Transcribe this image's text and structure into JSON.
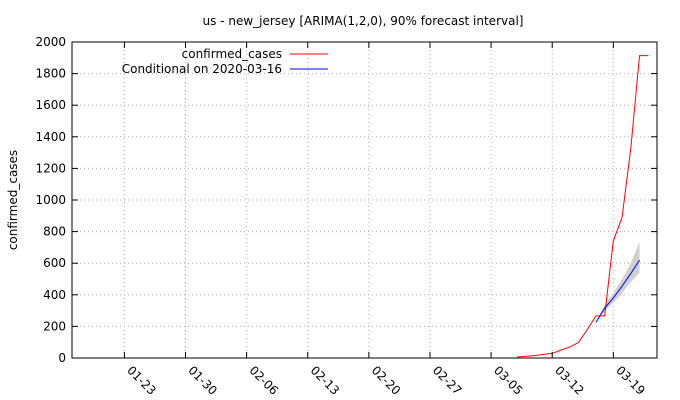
{
  "chart_data": {
    "type": "line",
    "title": "us - new_jersey [ARIMA(1,2,0), 90% forecast interval]",
    "xlabel": "",
    "ylabel": "confirmed_cases",
    "xlim": [
      "2020-01-17",
      "2020-03-24"
    ],
    "ylim": [
      0,
      2000
    ],
    "yticks": [
      0,
      200,
      400,
      600,
      800,
      1000,
      1200,
      1400,
      1600,
      1800,
      2000
    ],
    "xticks": [
      "01-23",
      "01-30",
      "02-06",
      "02-13",
      "02-20",
      "02-27",
      "03-05",
      "03-12",
      "03-19"
    ],
    "xtick_dates": [
      "2020-01-23",
      "2020-01-30",
      "2020-02-06",
      "2020-02-13",
      "2020-02-20",
      "2020-02-27",
      "2020-03-05",
      "2020-03-12",
      "2020-03-19"
    ],
    "grid": true,
    "grid_style": "dotted",
    "legend_position": "top-left",
    "series": [
      {
        "name": "confirmed_cases",
        "color": "#ff0000",
        "x": [
          "2020-03-08",
          "2020-03-09",
          "2020-03-10",
          "2020-03-11",
          "2020-03-12",
          "2020-03-13",
          "2020-03-14",
          "2020-03-15",
          "2020-03-16",
          "2020-03-17",
          "2020-03-18",
          "2020-03-19",
          "2020-03-20",
          "2020-03-21",
          "2020-03-22"
        ],
        "y": [
          6,
          11,
          15,
          23,
          29,
          50,
          69,
          98,
          178,
          267,
          267,
          742,
          890,
          1327,
          1914
        ]
      },
      {
        "name": "Conditional on 2020-03-16",
        "color": "#0000ff",
        "x": [
          "2020-03-17",
          "2020-03-18",
          "2020-03-19",
          "2020-03-20",
          "2020-03-21",
          "2020-03-22"
        ],
        "y": [
          225,
          315,
          380,
          455,
          535,
          620
        ],
        "interval_lower": [
          225,
          295,
          350,
          410,
          480,
          540
        ],
        "interval_upper": [
          225,
          335,
          410,
          500,
          600,
          735
        ],
        "interval_color": "#d0d0d0",
        "interval_label": "90% forecast interval"
      }
    ],
    "extra_points": [
      {
        "series": "confirmed_cases",
        "x": "2020-03-22",
        "y": 1914,
        "note": "flat continuation"
      },
      {
        "series": "confirmed_cases",
        "x": "2020-03-23",
        "y": 1914
      }
    ]
  }
}
